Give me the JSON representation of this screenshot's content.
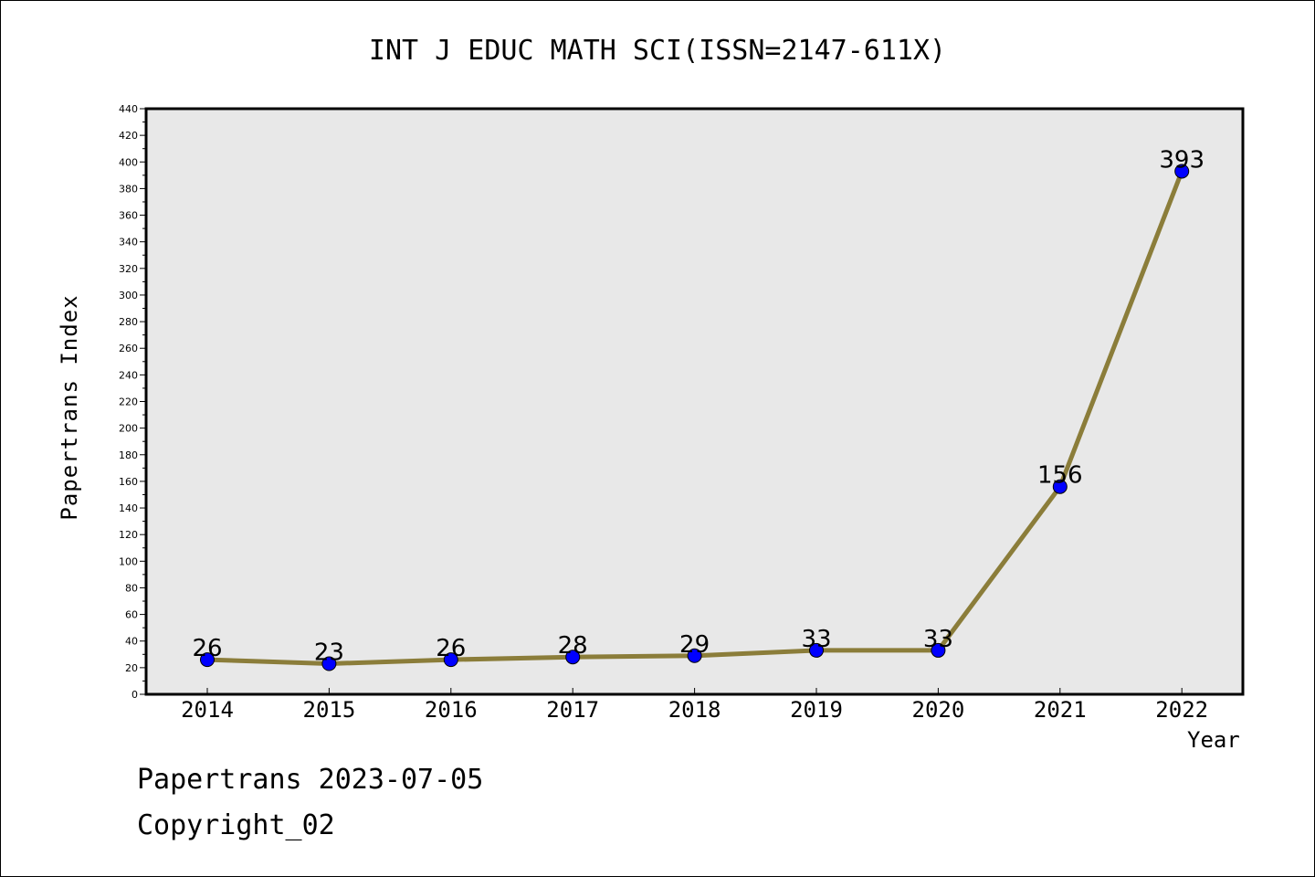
{
  "chart_data": {
    "type": "line",
    "title": "INT J EDUC MATH SCI(ISSN=2147-611X)",
    "xlabel": "Year",
    "ylabel": "Papertrans Index",
    "categories": [
      "2014",
      "2015",
      "2016",
      "2017",
      "2018",
      "2019",
      "2020",
      "2021",
      "2022"
    ],
    "series": [
      {
        "values": [
          26,
          23,
          26,
          28,
          29,
          33,
          33,
          156,
          393
        ]
      }
    ],
    "ylim": [
      0,
      440
    ],
    "y_ticks": [
      0,
      20,
      40,
      60,
      80,
      100,
      120,
      140,
      160,
      180,
      200,
      220,
      240,
      260,
      280,
      300,
      320,
      340,
      360,
      380,
      400,
      420,
      440
    ],
    "grid": false,
    "line_color": "#8b7d3a",
    "marker_color": "#0000ff",
    "plot_background": "#e8e8e8"
  },
  "footer": {
    "date_line": "Papertrans 2023-07-05",
    "copyright_line": "Copyright_02"
  }
}
